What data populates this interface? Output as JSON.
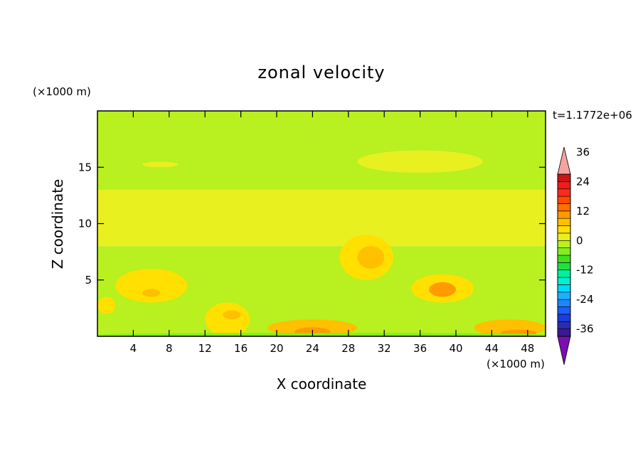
{
  "chart_data": {
    "type": "heatmap",
    "title": "zonal velocity",
    "xlabel": "X coordinate",
    "ylabel": "Z coordinate",
    "x_unit": "(×1000 m)",
    "y_unit": "(×1000 m)",
    "time_label": "t=1.1772e+06",
    "xlim": [
      0,
      50
    ],
    "ylim": [
      0,
      20
    ],
    "x_ticks": [
      4,
      8,
      12,
      16,
      20,
      24,
      28,
      32,
      36,
      40,
      44,
      48
    ],
    "y_ticks": [
      5,
      10,
      15
    ],
    "colorbar": {
      "min": -42,
      "max": 42,
      "step": 3,
      "tick_labels": [
        36,
        24,
        12,
        0,
        -12,
        -24,
        -36
      ],
      "extend": "both",
      "colors": [
        "#7a0fb0",
        "#3a1a8f",
        "#2b2cb0",
        "#1a3ce0",
        "#1e5cff",
        "#1e86ff",
        "#1eb0ff",
        "#00d8ff",
        "#00f0d0",
        "#00f0a0",
        "#20e040",
        "#40dd20",
        "#80ee20",
        "#b8f020",
        "#e8f020",
        "#ffe000",
        "#ffc000",
        "#ff9a00",
        "#ff7000",
        "#ff4a00",
        "#ff2a1a",
        "#ee1c1c",
        "#cc1414",
        "#f4a3a3"
      ]
    },
    "field_regions": [
      {
        "desc": "upper layer",
        "x": [
          0,
          50
        ],
        "y": [
          13,
          20
        ],
        "value": -3
      },
      {
        "desc": "middle layer",
        "x": [
          0,
          50
        ],
        "y": [
          8,
          13
        ],
        "value": 1
      },
      {
        "desc": "lower layer",
        "x": [
          0,
          50
        ],
        "y": [
          0,
          8
        ],
        "value": -3
      },
      {
        "x": [
          5,
          9
        ],
        "y": [
          15,
          15.5
        ],
        "value": 1
      },
      {
        "x": [
          29,
          43
        ],
        "y": [
          14.5,
          16.5
        ],
        "value": 1
      },
      {
        "x": [
          2,
          10
        ],
        "y": [
          3,
          6
        ],
        "value": 4
      },
      {
        "x": [
          5,
          7
        ],
        "y": [
          3.5,
          4.2
        ],
        "value": 7
      },
      {
        "x": [
          0,
          2
        ],
        "y": [
          2,
          3.5
        ],
        "value": 4
      },
      {
        "x": [
          12,
          17
        ],
        "y": [
          0,
          3
        ],
        "value": 5
      },
      {
        "x": [
          14,
          16
        ],
        "y": [
          1.5,
          2.3
        ],
        "value": 8
      },
      {
        "x": [
          19,
          29
        ],
        "y": [
          0,
          1.5
        ],
        "value": 6
      },
      {
        "x": [
          22,
          26
        ],
        "y": [
          0,
          0.8
        ],
        "value": 9
      },
      {
        "x": [
          27,
          33
        ],
        "y": [
          5,
          9
        ],
        "value": 4
      },
      {
        "x": [
          29,
          32
        ],
        "y": [
          6,
          8
        ],
        "value": 8
      },
      {
        "x": [
          35,
          42
        ],
        "y": [
          3,
          5.5
        ],
        "value": 5
      },
      {
        "x": [
          37,
          40
        ],
        "y": [
          3.5,
          4.8
        ],
        "value": 9
      },
      {
        "x": [
          42,
          50
        ],
        "y": [
          0,
          1.5
        ],
        "value": 6
      },
      {
        "x": [
          45,
          49
        ],
        "y": [
          0,
          0.6
        ],
        "value": 9
      },
      {
        "x": [
          20,
          26
        ],
        "y": [
          2,
          8
        ],
        "value": -3
      },
      {
        "x": [
          0,
          50
        ],
        "y": [
          0,
          0.3
        ],
        "value": -6
      }
    ]
  }
}
